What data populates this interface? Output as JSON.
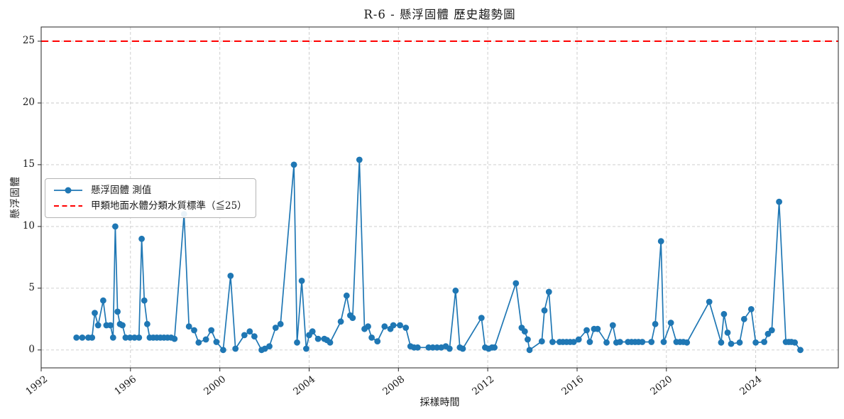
{
  "figure": {
    "title": "R-6 - 懸浮固體 歷史趨勢圖",
    "xlabel": "採樣時間",
    "ylabel": "懸浮固體"
  },
  "legend": {
    "series_label": "懸浮固體 測值",
    "threshold_label": "甲類地面水體分類水質標準（≦25）"
  },
  "colors": {
    "series": "#1f77b4",
    "threshold": "#ff0000",
    "grid": "#c9c9c9",
    "text": "#1a1a1a",
    "frame": "#262626"
  },
  "chart_data": {
    "type": "line",
    "title": "R-6 - 懸浮固體 歷史趨勢圖",
    "xlabel": "採樣時間",
    "ylabel": "懸浮固體",
    "x_unit": "decimal_year",
    "grid": true,
    "legend_position": "center-left",
    "xlim": [
      1992.0,
      2027.7
    ],
    "ylim": [
      -1.45,
      26.15
    ],
    "x_ticks": [
      1992,
      1996,
      2000,
      2004,
      2008,
      2012,
      2016,
      2020,
      2024
    ],
    "x_tick_labels": [
      "1992",
      "1996",
      "2000",
      "2004",
      "2008",
      "2012",
      "2016",
      "2020",
      "2024"
    ],
    "y_ticks": [
      0,
      5,
      10,
      15,
      20,
      25
    ],
    "threshold": {
      "value": 25,
      "label": "甲類地面水體分類水質標準（≦25）",
      "color": "#ff0000",
      "style": "dashed"
    },
    "series": [
      {
        "name": "懸浮固體 測值",
        "color": "#1f77b4",
        "marker": "circle",
        "points": [
          [
            1993.58,
            1
          ],
          [
            1993.84,
            1
          ],
          [
            1994.11,
            1
          ],
          [
            1994.28,
            1
          ],
          [
            1994.4,
            3
          ],
          [
            1994.55,
            2
          ],
          [
            1994.78,
            4
          ],
          [
            1994.92,
            2
          ],
          [
            1995.1,
            2
          ],
          [
            1995.22,
            1
          ],
          [
            1995.32,
            10
          ],
          [
            1995.42,
            3.1
          ],
          [
            1995.53,
            2.1
          ],
          [
            1995.64,
            2
          ],
          [
            1995.78,
            1
          ],
          [
            1995.98,
            1
          ],
          [
            1996.18,
            1
          ],
          [
            1996.38,
            1
          ],
          [
            1996.5,
            9
          ],
          [
            1996.62,
            4
          ],
          [
            1996.75,
            2.1
          ],
          [
            1996.86,
            1
          ],
          [
            1997.02,
            1
          ],
          [
            1997.18,
            1
          ],
          [
            1997.34,
            1
          ],
          [
            1997.5,
            1
          ],
          [
            1997.66,
            1
          ],
          [
            1997.82,
            1
          ],
          [
            1997.97,
            0.9
          ],
          [
            1998.4,
            11
          ],
          [
            1998.62,
            1.9
          ],
          [
            1998.85,
            1.6
          ],
          [
            1999.05,
            0.6
          ],
          [
            1999.38,
            0.85
          ],
          [
            1999.62,
            1.6
          ],
          [
            1999.85,
            0.65
          ],
          [
            2000.15,
            0
          ],
          [
            2000.48,
            6
          ],
          [
            2000.7,
            0.1
          ],
          [
            2001.1,
            1.2
          ],
          [
            2001.34,
            1.5
          ],
          [
            2001.55,
            1.1
          ],
          [
            2001.87,
            0
          ],
          [
            2002.02,
            0.1
          ],
          [
            2002.22,
            0.3
          ],
          [
            2002.5,
            1.8
          ],
          [
            2002.72,
            2.1
          ],
          [
            2003.32,
            15
          ],
          [
            2003.46,
            0.6
          ],
          [
            2003.67,
            5.6
          ],
          [
            2003.87,
            0.1
          ],
          [
            2004.0,
            1.2
          ],
          [
            2004.15,
            1.5
          ],
          [
            2004.4,
            0.9
          ],
          [
            2004.68,
            0.9
          ],
          [
            2004.8,
            0.8
          ],
          [
            2004.94,
            0.6
          ],
          [
            2005.42,
            2.3
          ],
          [
            2005.68,
            4.4
          ],
          [
            2005.84,
            2.8
          ],
          [
            2005.95,
            2.6
          ],
          [
            2006.25,
            15.4
          ],
          [
            2006.48,
            1.7
          ],
          [
            2006.64,
            1.9
          ],
          [
            2006.8,
            1
          ],
          [
            2007.06,
            0.7
          ],
          [
            2007.38,
            1.9
          ],
          [
            2007.64,
            1.7
          ],
          [
            2007.77,
            2
          ],
          [
            2008.07,
            2
          ],
          [
            2008.33,
            1.8
          ],
          [
            2008.54,
            0.3
          ],
          [
            2008.7,
            0.2
          ],
          [
            2008.86,
            0.2
          ],
          [
            2009.35,
            0.2
          ],
          [
            2009.54,
            0.2
          ],
          [
            2009.73,
            0.2
          ],
          [
            2009.92,
            0.2
          ],
          [
            2010.12,
            0.3
          ],
          [
            2010.29,
            0.1
          ],
          [
            2010.56,
            4.8
          ],
          [
            2010.75,
            0.2
          ],
          [
            2010.88,
            0.1
          ],
          [
            2011.72,
            2.6
          ],
          [
            2011.88,
            0.2
          ],
          [
            2012.04,
            0.1
          ],
          [
            2012.19,
            0.2
          ],
          [
            2012.3,
            0.2
          ],
          [
            2013.26,
            5.4
          ],
          [
            2013.52,
            1.8
          ],
          [
            2013.66,
            1.5
          ],
          [
            2013.79,
            0.85
          ],
          [
            2013.87,
            0
          ],
          [
            2014.42,
            0.7
          ],
          [
            2014.54,
            3.2
          ],
          [
            2014.74,
            4.7
          ],
          [
            2014.9,
            0.65
          ],
          [
            2015.22,
            0.65
          ],
          [
            2015.37,
            0.65
          ],
          [
            2015.53,
            0.65
          ],
          [
            2015.69,
            0.65
          ],
          [
            2015.85,
            0.65
          ],
          [
            2016.07,
            0.85
          ],
          [
            2016.43,
            1.6
          ],
          [
            2016.57,
            0.65
          ],
          [
            2016.76,
            1.7
          ],
          [
            2016.92,
            1.7
          ],
          [
            2017.32,
            0.6
          ],
          [
            2017.6,
            2
          ],
          [
            2017.76,
            0.6
          ],
          [
            2017.92,
            0.65
          ],
          [
            2018.28,
            0.65
          ],
          [
            2018.44,
            0.65
          ],
          [
            2018.6,
            0.65
          ],
          [
            2018.75,
            0.65
          ],
          [
            2018.92,
            0.65
          ],
          [
            2019.33,
            0.65
          ],
          [
            2019.5,
            2.1
          ],
          [
            2019.76,
            8.8
          ],
          [
            2019.88,
            0.65
          ],
          [
            2020.2,
            2.2
          ],
          [
            2020.45,
            0.65
          ],
          [
            2020.61,
            0.65
          ],
          [
            2020.76,
            0.65
          ],
          [
            2020.92,
            0.6
          ],
          [
            2021.92,
            3.9
          ],
          [
            2022.45,
            0.6
          ],
          [
            2022.58,
            2.9
          ],
          [
            2022.74,
            1.4
          ],
          [
            2022.9,
            0.5
          ],
          [
            2023.28,
            0.6
          ],
          [
            2023.48,
            2.5
          ],
          [
            2023.8,
            3.3
          ],
          [
            2024.0,
            0.6
          ],
          [
            2024.38,
            0.65
          ],
          [
            2024.55,
            1.3
          ],
          [
            2024.72,
            1.6
          ],
          [
            2025.05,
            12
          ],
          [
            2025.35,
            0.65
          ],
          [
            2025.48,
            0.65
          ],
          [
            2025.6,
            0.65
          ],
          [
            2025.75,
            0.6
          ],
          [
            2026.0,
            0
          ]
        ]
      }
    ]
  }
}
